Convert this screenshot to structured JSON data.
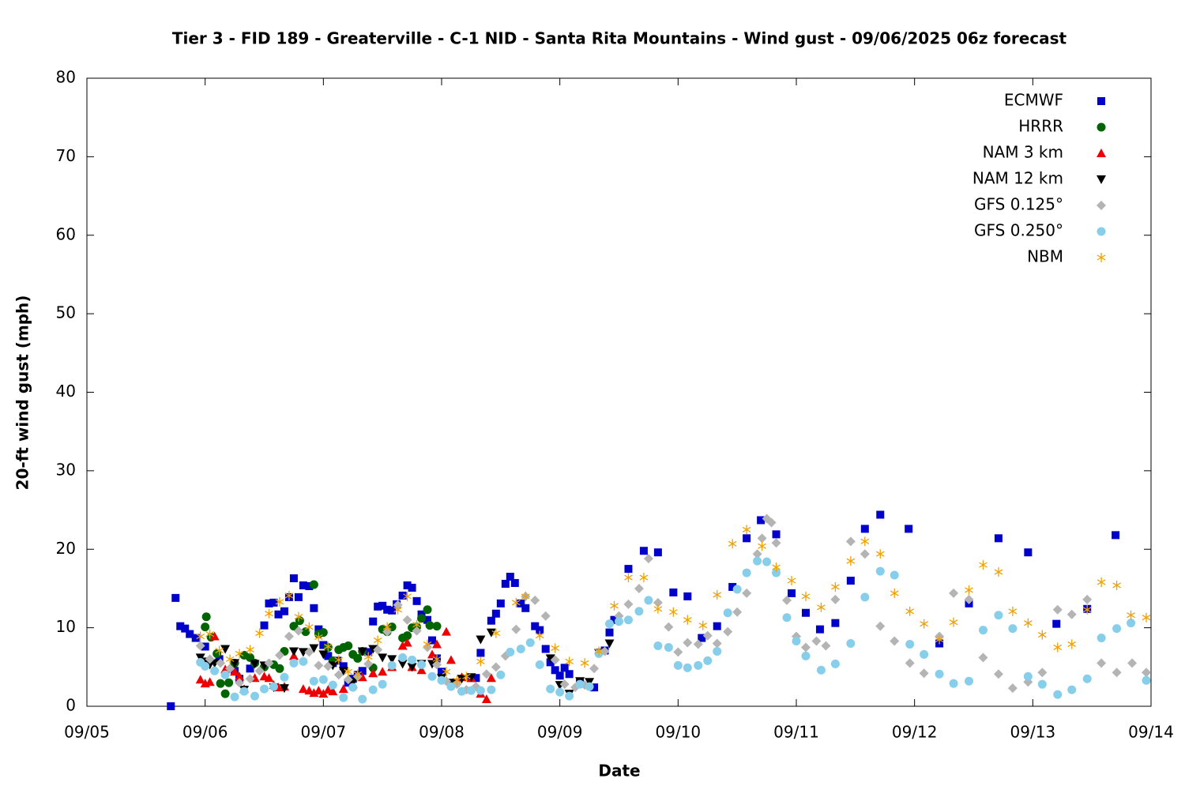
{
  "chart_data": {
    "type": "scatter",
    "title": "Tier 3 - FID 189 - Greaterville - C-1 NID - Santa Rita Mountains - Wind gust - 09/06/2025 06z forecast",
    "x_label": "Date",
    "y_label": "20-ft wind gust (mph)",
    "xlim": [
      0,
      9
    ],
    "ylim": [
      0,
      80
    ],
    "xticks": [
      {
        "value": 0,
        "label": "09/05"
      },
      {
        "value": 1,
        "label": "09/06"
      },
      {
        "value": 2,
        "label": "09/07"
      },
      {
        "value": 3,
        "label": "09/08"
      },
      {
        "value": 4,
        "label": "09/09"
      },
      {
        "value": 5,
        "label": "09/10"
      },
      {
        "value": 6,
        "label": "09/11"
      },
      {
        "value": 7,
        "label": "09/12"
      },
      {
        "value": 8,
        "label": "09/13"
      },
      {
        "value": 9,
        "label": "09/14"
      }
    ],
    "yticks": [
      0,
      10,
      20,
      30,
      40,
      50,
      60,
      70,
      80
    ],
    "grid": false,
    "legend": "top-right",
    "series": [
      {
        "name": "ECMWF",
        "color": "#0000cc",
        "marker": "square",
        "x": [
          0.71,
          0.75,
          0.79,
          0.83,
          0.87,
          0.92,
          1.0,
          1.12,
          1.25,
          1.29,
          1.38,
          1.5,
          1.54,
          1.58,
          1.62,
          1.67,
          1.71,
          1.75,
          1.79,
          1.83,
          1.88,
          1.92,
          1.96,
          2.0,
          2.04,
          2.08,
          2.12,
          2.17,
          2.21,
          2.25,
          2.29,
          2.33,
          2.38,
          2.42,
          2.46,
          2.5,
          2.54,
          2.58,
          2.62,
          2.67,
          2.71,
          2.75,
          2.79,
          2.83,
          2.88,
          2.92,
          2.96,
          3.0,
          3.12,
          3.25,
          3.29,
          3.33,
          3.42,
          3.46,
          3.5,
          3.54,
          3.58,
          3.62,
          3.67,
          3.71,
          3.79,
          3.83,
          3.88,
          3.92,
          3.96,
          4.0,
          4.04,
          4.08,
          4.17,
          4.29,
          4.38,
          4.42,
          4.46,
          4.58,
          4.71,
          4.83,
          4.96,
          5.08,
          5.2,
          5.33,
          5.46,
          5.58,
          5.7,
          5.83,
          5.96,
          6.08,
          6.2,
          6.33,
          6.46,
          6.58,
          6.71,
          6.95,
          7.21,
          7.46,
          7.71,
          7.96,
          8.2,
          8.46,
          8.7
        ],
        "values": [
          0,
          13.8,
          10.2,
          9.9,
          9.2,
          8.7,
          7.6,
          6.0,
          4.5,
          3.5,
          4.8,
          10.3,
          13.1,
          13.2,
          11.7,
          12.1,
          13.9,
          16.3,
          13.9,
          15.4,
          15.3,
          12.5,
          9.8,
          7.8,
          6.4,
          5.5,
          5.8,
          5.1,
          3.0,
          3.5,
          4.0,
          4.5,
          6.9,
          10.8,
          12.7,
          12.8,
          12.3,
          12.2,
          13.0,
          14.1,
          15.4,
          15.1,
          13.4,
          11.7,
          11.0,
          8.4,
          6.1,
          4.4,
          3.0,
          3.6,
          3.6,
          6.8,
          10.9,
          11.8,
          13.1,
          15.6,
          16.5,
          15.7,
          13.1,
          12.5,
          10.2,
          9.7,
          7.3,
          5.6,
          4.6,
          3.9,
          4.9,
          4.1,
          3.0,
          2.4,
          7.1,
          9.4,
          11.0,
          17.5,
          19.8,
          19.6,
          14.5,
          14.0,
          8.7,
          10.2,
          15.2,
          21.4,
          23.7,
          21.9,
          14.4,
          11.9,
          9.8,
          10.6,
          16.0,
          22.6,
          24.4,
          22.6,
          8.0,
          13.1,
          21.4,
          19.6,
          10.5,
          12.4,
          21.8
        ]
      },
      {
        "name": "HRRR",
        "color": "#006400",
        "marker": "circle",
        "x": [
          1.0,
          1.01,
          1.05,
          1.1,
          1.13,
          1.17,
          1.2,
          1.25,
          1.33,
          1.38,
          1.42,
          1.5,
          1.58,
          1.63,
          1.67,
          1.75,
          1.8,
          1.85,
          1.92,
          1.96,
          2.0,
          2.04,
          2.08,
          2.13,
          2.17,
          2.21,
          2.25,
          2.29,
          2.33,
          2.42,
          2.5,
          2.54,
          2.58,
          2.67,
          2.71,
          2.75,
          2.79,
          2.83,
          2.88,
          2.9,
          2.96
        ],
        "values": [
          10.1,
          11.4,
          8.8,
          6.7,
          2.9,
          1.6,
          3.0,
          5.5,
          6.5,
          6.2,
          5.5,
          5.0,
          5.3,
          4.8,
          7.0,
          10.2,
          10.9,
          9.5,
          15.5,
          9.2,
          9.4,
          7.5,
          5.8,
          7.2,
          7.5,
          7.7,
          6.6,
          6.1,
          7.0,
          4.9,
          9.8,
          9.5,
          10.1,
          8.7,
          9.0,
          10.0,
          10.1,
          11.2,
          12.3,
          10.3,
          10.2
        ]
      },
      {
        "name": "NAM 3 km",
        "color": "#ee0000",
        "marker": "triangle",
        "x": [
          0.96,
          1.0,
          1.04,
          1.08,
          1.17,
          1.25,
          1.29,
          1.33,
          1.42,
          1.5,
          1.54,
          1.58,
          1.62,
          1.67,
          1.75,
          1.83,
          1.88,
          1.92,
          1.96,
          2.0,
          2.04,
          2.08,
          2.17,
          2.25,
          2.33,
          2.42,
          2.5,
          2.58,
          2.67,
          2.71,
          2.75,
          2.83,
          2.92,
          2.96,
          3.04,
          3.08,
          3.17,
          3.25,
          3.33,
          3.38,
          3.42
        ],
        "values": [
          3.4,
          2.9,
          3.1,
          8.9,
          4.7,
          4.4,
          3.8,
          2.2,
          3.6,
          3.8,
          3.6,
          2.7,
          2.4,
          2.5,
          6.4,
          2.2,
          2.0,
          1.7,
          2.0,
          1.6,
          2.1,
          1.9,
          2.2,
          2.8,
          3.7,
          4.2,
          4.4,
          5.0,
          7.7,
          8.1,
          5.0,
          4.6,
          6.6,
          7.9,
          9.5,
          5.9,
          3.7,
          3.6,
          1.6,
          0.9,
          3.6
        ]
      },
      {
        "name": "NAM 12 km",
        "color": "#000000",
        "marker": "triangle-down",
        "x": [
          0.96,
          1.0,
          1.04,
          1.08,
          1.17,
          1.25,
          1.33,
          1.42,
          1.5,
          1.58,
          1.67,
          1.75,
          1.83,
          1.92,
          2.0,
          2.08,
          2.17,
          2.25,
          2.33,
          2.42,
          2.5,
          2.58,
          2.67,
          2.75,
          2.83,
          2.92,
          3.0,
          3.08,
          3.17,
          3.25,
          3.33,
          3.42,
          3.92,
          4.0,
          4.08,
          4.17,
          4.25,
          4.33,
          4.42
        ],
        "values": [
          6.2,
          5.7,
          5.3,
          5.5,
          7.3,
          5.5,
          2.1,
          5.4,
          5.2,
          2.4,
          2.3,
          7.0,
          6.9,
          7.4,
          6.6,
          5.2,
          4.5,
          3.1,
          7.0,
          7.3,
          6.2,
          6.0,
          5.4,
          5.0,
          5.4,
          5.4,
          3.6,
          3.0,
          3.5,
          3.7,
          8.5,
          9.4,
          6.1,
          2.7,
          1.6,
          3.2,
          3.1,
          6.8,
          8.0
        ]
      },
      {
        "name": "GFS 0.125°",
        "color": "#b4b4b4",
        "marker": "diamond",
        "x": [
          0.96,
          1.04,
          1.13,
          1.21,
          1.29,
          1.38,
          1.46,
          1.54,
          1.63,
          1.71,
          1.79,
          1.88,
          1.96,
          2.04,
          2.13,
          2.21,
          2.29,
          2.38,
          2.46,
          2.54,
          2.63,
          2.71,
          2.79,
          2.88,
          2.96,
          3.04,
          3.13,
          3.21,
          3.29,
          3.38,
          3.46,
          3.54,
          3.63,
          3.71,
          3.79,
          3.88,
          3.96,
          4.04,
          4.13,
          4.21,
          4.29,
          4.38,
          4.5,
          4.58,
          4.67,
          4.75,
          4.83,
          4.92,
          5.0,
          5.08,
          5.17,
          5.25,
          5.33,
          5.42,
          5.5,
          5.58,
          5.67,
          5.71,
          5.75,
          5.79,
          5.83,
          5.92,
          6.0,
          6.08,
          6.17,
          6.25,
          6.33,
          6.46,
          6.58,
          6.71,
          6.83,
          6.96,
          7.08,
          7.21,
          7.33,
          7.46,
          7.58,
          7.71,
          7.83,
          7.96,
          8.08,
          8.21,
          8.33,
          8.46,
          8.58,
          8.71,
          8.84,
          8.96
        ],
        "values": [
          7.7,
          6.0,
          5.5,
          4.8,
          3.0,
          3.5,
          4.5,
          5.5,
          6.5,
          8.9,
          9.6,
          6.9,
          5.2,
          5.1,
          4.0,
          3.4,
          3.8,
          5.4,
          7.2,
          9.5,
          12.9,
          11.0,
          9.6,
          7.5,
          5.3,
          3.2,
          2.8,
          2.1,
          2.5,
          4.1,
          5.0,
          6.4,
          9.8,
          14.0,
          13.5,
          11.5,
          5.9,
          2.8,
          2.4,
          2.7,
          4.8,
          7.0,
          11.5,
          13.0,
          15.0,
          18.8,
          13.2,
          10.1,
          6.9,
          8.1,
          7.9,
          9.0,
          8.0,
          9.5,
          12.0,
          14.4,
          19.4,
          21.4,
          23.9,
          23.4,
          20.8,
          13.5,
          8.9,
          7.5,
          8.3,
          7.7,
          13.6,
          21.0,
          19.4,
          10.2,
          8.3,
          5.5,
          4.2,
          8.9,
          14.4,
          13.6,
          6.2,
          4.1,
          2.3,
          3.1,
          4.3,
          12.3,
          11.7,
          13.6,
          5.5,
          4.3,
          5.5,
          4.3
        ]
      },
      {
        "name": "GFS 0.250°",
        "color": "#87ceeb",
        "marker": "circle",
        "x": [
          0.96,
          1.0,
          1.08,
          1.17,
          1.25,
          1.33,
          1.42,
          1.5,
          1.58,
          1.67,
          1.75,
          1.83,
          1.92,
          2.0,
          2.08,
          2.17,
          2.25,
          2.33,
          2.42,
          2.5,
          2.58,
          2.67,
          2.75,
          2.83,
          2.92,
          3.0,
          3.08,
          3.17,
          3.25,
          3.33,
          3.42,
          3.5,
          3.58,
          3.67,
          3.75,
          3.83,
          3.92,
          4.0,
          4.08,
          4.17,
          4.25,
          4.33,
          4.42,
          4.5,
          4.58,
          4.67,
          4.75,
          4.83,
          4.92,
          5.0,
          5.08,
          5.17,
          5.25,
          5.33,
          5.42,
          5.5,
          5.58,
          5.67,
          5.75,
          5.83,
          5.92,
          6.0,
          6.08,
          6.21,
          6.33,
          6.46,
          6.58,
          6.71,
          6.83,
          6.96,
          7.08,
          7.21,
          7.33,
          7.46,
          7.58,
          7.71,
          7.83,
          7.96,
          8.08,
          8.21,
          8.33,
          8.46,
          8.58,
          8.71,
          8.83,
          8.96
        ],
        "values": [
          5.6,
          5.1,
          4.5,
          4.0,
          1.2,
          1.9,
          1.3,
          2.2,
          2.5,
          3.7,
          5.5,
          5.7,
          3.2,
          3.4,
          2.7,
          1.1,
          2.4,
          0.9,
          2.1,
          2.8,
          5.2,
          6.2,
          5.9,
          5.3,
          3.8,
          3.3,
          2.5,
          1.9,
          2.0,
          2.0,
          2.1,
          4.0,
          6.9,
          7.3,
          8.1,
          5.3,
          2.2,
          1.8,
          1.3,
          2.8,
          2.5,
          6.7,
          10.5,
          10.8,
          11.0,
          12.1,
          13.5,
          7.7,
          7.5,
          5.2,
          4.9,
          5.2,
          5.8,
          7.0,
          11.9,
          14.9,
          17.0,
          18.5,
          18.4,
          17.0,
          11.3,
          8.3,
          6.4,
          4.6,
          5.4,
          8.0,
          13.9,
          17.2,
          16.7,
          7.9,
          6.6,
          4.1,
          2.9,
          3.2,
          9.7,
          11.6,
          9.9,
          3.8,
          2.8,
          1.5,
          2.1,
          3.5,
          8.7,
          9.9,
          10.6,
          3.3
        ]
      },
      {
        "name": "NBM",
        "color": "#f0a000",
        "marker": "asterisk",
        "x": [
          0.96,
          1.04,
          1.12,
          1.21,
          1.29,
          1.38,
          1.46,
          1.54,
          1.63,
          1.71,
          1.79,
          1.88,
          1.96,
          2.04,
          2.13,
          2.21,
          2.29,
          2.38,
          2.46,
          2.54,
          2.63,
          2.71,
          2.79,
          2.88,
          2.96,
          3.04,
          3.13,
          3.21,
          3.33,
          3.46,
          3.63,
          3.71,
          3.83,
          3.96,
          4.08,
          4.21,
          4.33,
          4.46,
          4.58,
          4.71,
          4.83,
          4.96,
          5.08,
          5.21,
          5.33,
          5.46,
          5.58,
          5.71,
          5.83,
          5.96,
          6.08,
          6.21,
          6.33,
          6.46,
          6.58,
          6.71,
          6.83,
          6.96,
          7.08,
          7.21,
          7.33,
          7.46,
          7.58,
          7.71,
          7.83,
          7.96,
          8.08,
          8.21,
          8.33,
          8.46,
          8.58,
          8.71,
          8.83,
          8.96
        ],
        "values": [
          8.9,
          9.2,
          7.1,
          6.0,
          6.7,
          7.2,
          9.3,
          11.8,
          13.3,
          14.1,
          11.4,
          10.1,
          8.8,
          7.6,
          5.9,
          4.4,
          4.1,
          6.3,
          8.4,
          10.1,
          12.3,
          14.0,
          10.4,
          7.9,
          6.0,
          4.4,
          3.3,
          3.8,
          5.7,
          9.3,
          13.2,
          14.0,
          9.0,
          7.4,
          5.7,
          5.5,
          7.0,
          12.8,
          16.4,
          16.4,
          12.4,
          12.0,
          11.0,
          10.3,
          14.2,
          20.7,
          22.5,
          20.4,
          17.7,
          16.0,
          14.0,
          12.6,
          15.2,
          18.5,
          21.0,
          19.4,
          14.4,
          12.1,
          10.5,
          8.5,
          10.7,
          14.8,
          18.0,
          17.1,
          12.1,
          10.6,
          9.1,
          7.5,
          7.9,
          12.3,
          15.8,
          15.4,
          11.6,
          11.3
        ]
      }
    ]
  }
}
